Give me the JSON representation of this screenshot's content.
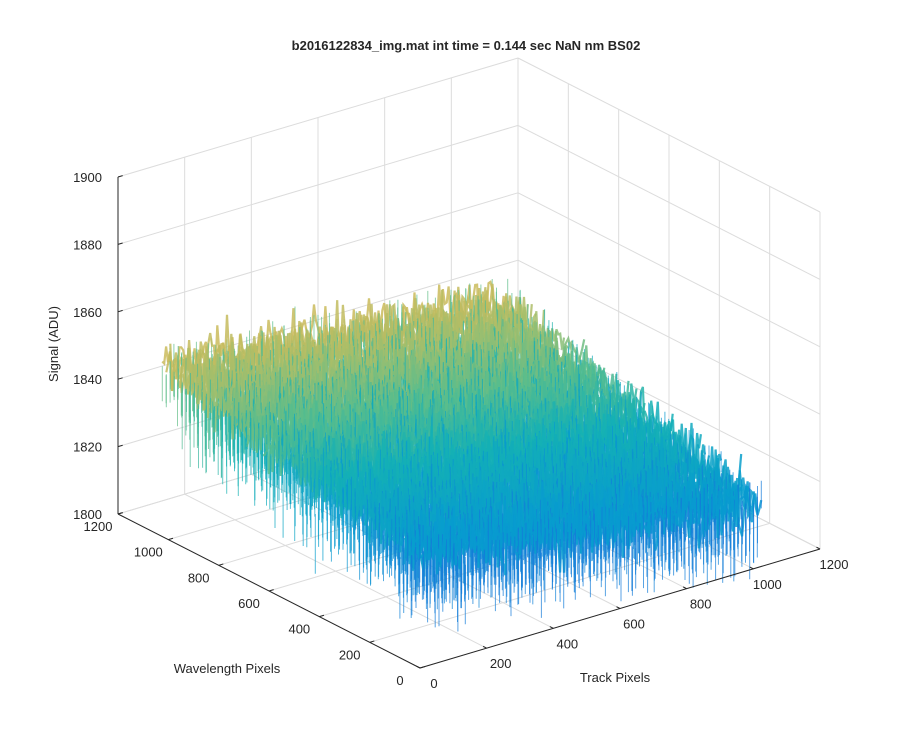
{
  "chart_data": {
    "type": "surface",
    "title": "b2016122834_img.mat int time = 0.144 sec  NaN nm BS02",
    "xlabel": "Track Pixels",
    "ylabel": "Wavelength Pixels",
    "zlabel": "Signal (ADU)",
    "xlim": [
      0,
      1200
    ],
    "ylim": [
      0,
      1200
    ],
    "zlim": [
      1800,
      1900
    ],
    "xticks": [
      "0",
      "200",
      "400",
      "600",
      "800",
      "1000",
      "1200"
    ],
    "yticks": [
      "0",
      "200",
      "400",
      "600",
      "800",
      "1000",
      "1200"
    ],
    "zticks": [
      "1800",
      "1820",
      "1840",
      "1860",
      "1880",
      "1900"
    ],
    "grid": true,
    "colormap": "parula",
    "data_extent": {
      "track_pixels": [
        0,
        1024
      ],
      "wavelength_pixels": [
        0,
        1024
      ]
    },
    "surface_profile": {
      "description": "noisy detector frame; signal highest at low track pixels / high wavelength pixels",
      "corner_means": {
        "track_0_wl_1024": 1851,
        "track_0_wl_0": 1834,
        "track_1024_wl_1024": 1840,
        "track_1024_wl_0": 1818
      },
      "noise_amplitude": 12
    }
  }
}
